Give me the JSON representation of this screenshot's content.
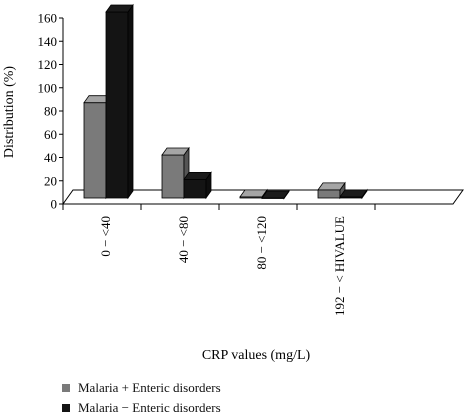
{
  "chart_data": {
    "type": "bar",
    "style": "3d-clustered",
    "title": "",
    "xlabel": "CRP values (mg/L)",
    "ylabel": "Distribution (%)",
    "ylim": [
      0,
      160
    ],
    "yticks": [
      "0",
      "20",
      "40",
      "60",
      "80",
      "100",
      "120",
      "140",
      "160"
    ],
    "categories": [
      "0 − <40",
      "40 − <80",
      "80 − <120",
      "192 − < HIVALUE"
    ],
    "series": [
      {
        "name": "Malaria + Enteric disorders",
        "values": [
          82,
          37,
          1,
          7
        ],
        "color": "#7a7a7a"
      },
      {
        "name": "Malaria − Enteric disorders",
        "values": [
          160,
          16,
          0,
          1
        ],
        "color": "#141414"
      }
    ],
    "grid": false,
    "legend": "bottom-left"
  }
}
